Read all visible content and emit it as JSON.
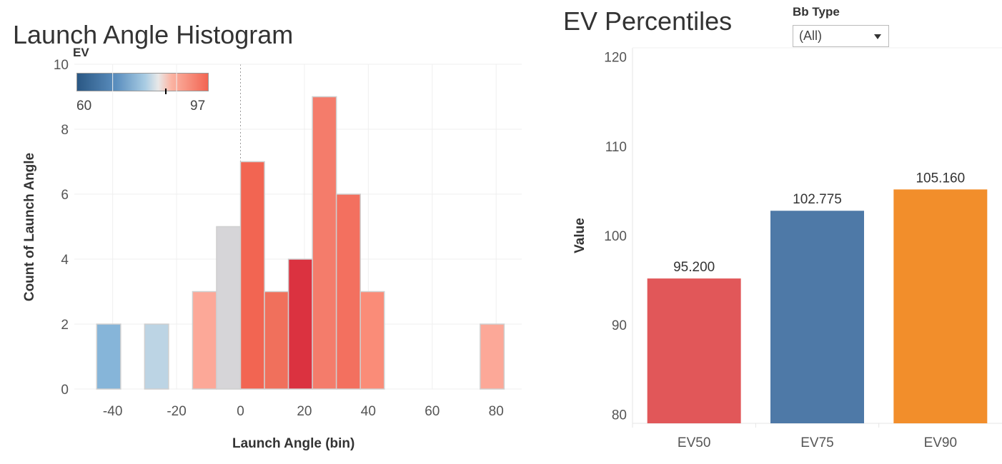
{
  "histogram": {
    "title": "Launch Angle Histogram",
    "legend": {
      "title": "EV",
      "min_label": "60",
      "max_label": "97"
    },
    "chart_data": {
      "type": "bar",
      "title": "Launch Angle Histogram",
      "xlabel": "Launch Angle (bin)",
      "ylabel": "Count of Launch Angle",
      "xlim": [
        -52,
        88
      ],
      "ylim": [
        0,
        10
      ],
      "x_ticks": [
        -40,
        -20,
        0,
        20,
        40,
        60,
        80
      ],
      "y_ticks": [
        0,
        2,
        4,
        6,
        8,
        10
      ],
      "bin_width": 7.5,
      "bins": [
        {
          "start": -45,
          "count": 2,
          "color": "#86b5d9"
        },
        {
          "start": -30,
          "count": 2,
          "color": "#bcd4e4"
        },
        {
          "start": -15,
          "count": 3,
          "color": "#fca898"
        },
        {
          "start": -7.5,
          "count": 5,
          "color": "#d6d5d8"
        },
        {
          "start": 0,
          "count": 7,
          "color": "#f26552"
        },
        {
          "start": 7.5,
          "count": 3,
          "color": "#f0705c"
        },
        {
          "start": 15,
          "count": 4,
          "color": "#db3240"
        },
        {
          "start": 22.5,
          "count": 9,
          "color": "#f47c6b"
        },
        {
          "start": 30,
          "count": 6,
          "color": "#f3705f"
        },
        {
          "start": 37.5,
          "count": 3,
          "color": "#fa8c78"
        },
        {
          "start": 75,
          "count": 2,
          "color": "#fca898"
        }
      ]
    }
  },
  "percentiles": {
    "title": "EV Percentiles",
    "filter": {
      "label": "Bb Type",
      "value": "(All)"
    },
    "chart_data": {
      "type": "bar",
      "title": "EV Percentiles",
      "xlabel": "",
      "ylabel": "Value",
      "ylim": [
        79,
        121
      ],
      "y_ticks": [
        80,
        90,
        100,
        110,
        120
      ],
      "categories": [
        "EV50",
        "EV75",
        "EV90"
      ],
      "values": [
        95.2,
        102.775,
        105.16
      ],
      "value_labels": [
        "95.200",
        "102.775",
        "105.160"
      ],
      "colors": [
        "#e15759",
        "#4e79a7",
        "#f28e2b"
      ]
    }
  }
}
